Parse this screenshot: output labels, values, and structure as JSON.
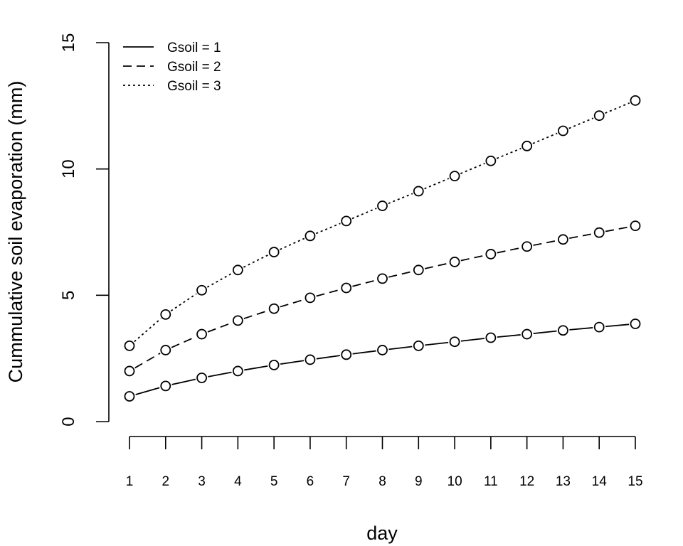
{
  "chart_data": {
    "type": "line",
    "title": "",
    "xlabel": "day",
    "ylabel": "Cummulative soil evaporation (mm)",
    "x": [
      1,
      2,
      3,
      4,
      5,
      6,
      7,
      8,
      9,
      10,
      11,
      12,
      13,
      14,
      15
    ],
    "x_ticks": [
      "1",
      "2",
      "3",
      "4",
      "5",
      "6",
      "7",
      "8",
      "9",
      "10",
      "11",
      "12",
      "13",
      "14",
      "15"
    ],
    "ylim": [
      0,
      15
    ],
    "y_ticks": [
      "0",
      "5",
      "10",
      "15"
    ],
    "grid": false,
    "legend_position": "top-left",
    "marker": "open-circle",
    "series": [
      {
        "name": "Gsoil = 1",
        "line_style": "solid",
        "values": [
          1.0,
          1.41,
          1.73,
          2.0,
          2.24,
          2.45,
          2.65,
          2.83,
          3.0,
          3.16,
          3.32,
          3.46,
          3.61,
          3.74,
          3.87
        ]
      },
      {
        "name": "Gsoil = 2",
        "line_style": "dashed",
        "values": [
          2.0,
          2.83,
          3.46,
          4.0,
          4.47,
          4.9,
          5.29,
          5.66,
          6.0,
          6.32,
          6.63,
          6.93,
          7.21,
          7.48,
          7.75
        ]
      },
      {
        "name": "Gsoil = 3",
        "line_style": "dotted",
        "values": [
          3.0,
          4.24,
          5.2,
          6.0,
          6.71,
          7.35,
          7.94,
          8.54,
          9.12,
          9.72,
          10.32,
          10.91,
          11.51,
          12.11,
          12.71
        ]
      }
    ]
  }
}
